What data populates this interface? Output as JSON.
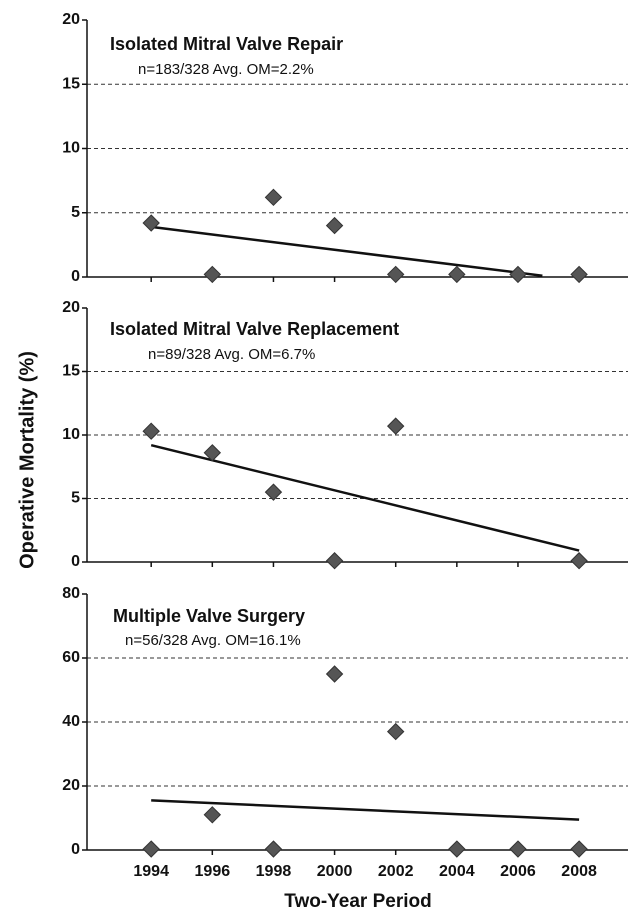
{
  "chart_data": [
    {
      "type": "scatter",
      "title": "Isolated Mitral Valve Repair",
      "subtitle": "n=183/328  Avg. OM=2.2%",
      "x": [
        1994,
        1996,
        1998,
        2000,
        2002,
        2004,
        2006,
        2008
      ],
      "values": [
        4.2,
        0.2,
        6.2,
        4.0,
        0.2,
        0.2,
        0.2,
        0.2
      ],
      "trendline": {
        "x": [
          1994,
          2006.8
        ],
        "values": [
          3.9,
          0.1
        ]
      },
      "color": "#555555",
      "xlim": [
        1991.9,
        2009.6
      ],
      "ylim": [
        0,
        20
      ],
      "yticks": [
        0,
        5,
        10,
        15,
        20
      ],
      "grid": true
    },
    {
      "type": "scatter",
      "title": "Isolated Mitral Valve Replacement",
      "subtitle": "n=89/328  Avg. OM=6.7%",
      "ylabel": "Operative Mortality (%)",
      "x": [
        1994,
        1996,
        1998,
        2000,
        2002,
        2004,
        2006,
        2008
      ],
      "values": [
        10.3,
        8.6,
        5.5,
        0.1,
        10.7,
        null,
        null,
        0.1
      ],
      "trendline": {
        "x": [
          1994,
          2008
        ],
        "values": [
          9.2,
          0.9
        ]
      },
      "color": "#555555",
      "xlim": [
        1991.9,
        2009.6
      ],
      "ylim": [
        0,
        20
      ],
      "yticks": [
        0,
        5,
        10,
        15,
        20
      ],
      "grid": true
    },
    {
      "type": "scatter",
      "title": "Multiple Valve Surgery",
      "subtitle": "n=56/328  Avg. OM=16.1%",
      "xlabel": "Two-Year Period",
      "x": [
        1994,
        1996,
        1998,
        2000,
        2002,
        2004,
        2006,
        2008
      ],
      "values": [
        0.3,
        11,
        0.3,
        55,
        37,
        0.3,
        0.3,
        0.3
      ],
      "trendline": {
        "x": [
          1994,
          2008
        ],
        "values": [
          15.5,
          9.5
        ]
      },
      "color": "#555555",
      "xlim": [
        1991.9,
        2009.6
      ],
      "ylim": [
        0,
        80
      ],
      "yticks": [
        0,
        20,
        40,
        60,
        80
      ],
      "xticks": [
        1994,
        1996,
        1998,
        2000,
        2002,
        2004,
        2006,
        2008
      ],
      "grid": true
    }
  ]
}
